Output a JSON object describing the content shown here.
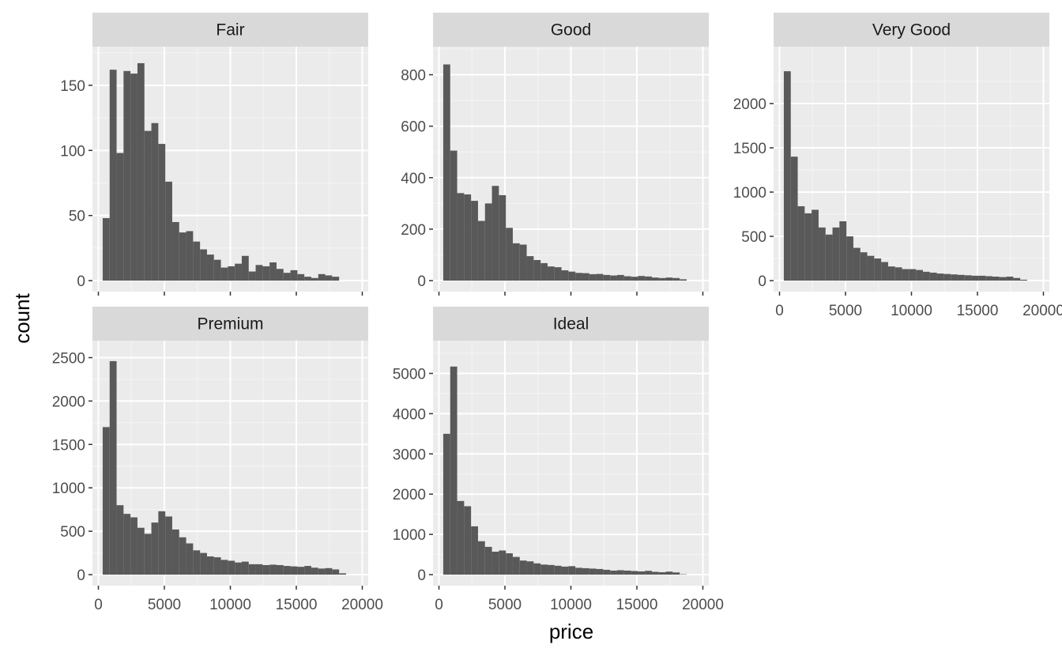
{
  "chart_data": {
    "type": "bar",
    "subtype": "faceted-histogram",
    "xlabel": "price",
    "ylabel": "count",
    "bin_width": 527,
    "bin_start": 326,
    "bin_count": 35,
    "xlim": [
      0,
      20000
    ],
    "xticks": [
      0,
      5000,
      10000,
      15000,
      20000
    ],
    "grid": true,
    "legend": "none",
    "colors": {
      "panel_background": "#ebebeb",
      "grid_major": "#ffffff",
      "grid_minor": "#f5f5f5",
      "strip_background": "#d9d9d9",
      "bar_fill": "#595959",
      "tick_text": "#4d4d4d"
    },
    "facets": [
      {
        "name": "Fair",
        "ylim": [
          0,
          170
        ],
        "yticks": [
          0,
          50,
          100,
          150
        ],
        "values": [
          48,
          162,
          98,
          161,
          159,
          167,
          115,
          121,
          105,
          76,
          45,
          37,
          38,
          30,
          24,
          20,
          16,
          10,
          11,
          13,
          19,
          7,
          12,
          11,
          14,
          9,
          6,
          8,
          5,
          3,
          2,
          5,
          4,
          3,
          0
        ]
      },
      {
        "name": "Good",
        "ylim": [
          0,
          860
        ],
        "yticks": [
          0,
          200,
          400,
          600,
          800
        ],
        "values": [
          840,
          505,
          340,
          335,
          310,
          232,
          300,
          368,
          332,
          205,
          145,
          140,
          95,
          80,
          68,
          55,
          52,
          40,
          35,
          30,
          29,
          25,
          26,
          22,
          20,
          22,
          17,
          15,
          18,
          16,
          12,
          10,
          12,
          10,
          5
        ]
      },
      {
        "name": "Very Good",
        "ylim": [
          0,
          2500
        ],
        "yticks": [
          0,
          500,
          1000,
          1500,
          2000
        ],
        "values": [
          2365,
          1400,
          840,
          760,
          800,
          600,
          520,
          600,
          670,
          500,
          370,
          320,
          280,
          250,
          210,
          160,
          150,
          130,
          130,
          120,
          100,
          90,
          80,
          75,
          70,
          65,
          60,
          55,
          55,
          50,
          45,
          40,
          45,
          30,
          10
        ]
      },
      {
        "name": "Premium",
        "ylim": [
          0,
          2550
        ],
        "yticks": [
          0,
          500,
          1000,
          1500,
          2000,
          2500
        ],
        "values": [
          1700,
          2460,
          800,
          700,
          660,
          540,
          470,
          600,
          730,
          670,
          520,
          430,
          360,
          280,
          250,
          210,
          200,
          170,
          160,
          140,
          150,
          120,
          120,
          110,
          115,
          110,
          100,
          95,
          90,
          100,
          80,
          70,
          75,
          60,
          15
        ]
      },
      {
        "name": "Ideal",
        "ylim": [
          0,
          5500
        ],
        "yticks": [
          0,
          1000,
          2000,
          3000,
          4000,
          5000
        ],
        "values": [
          3500,
          5170,
          1830,
          1700,
          1200,
          830,
          690,
          570,
          600,
          530,
          440,
          350,
          330,
          280,
          250,
          240,
          220,
          200,
          210,
          170,
          160,
          150,
          140,
          120,
          100,
          110,
          100,
          90,
          80,
          95,
          70,
          60,
          75,
          55,
          10
        ]
      }
    ]
  }
}
